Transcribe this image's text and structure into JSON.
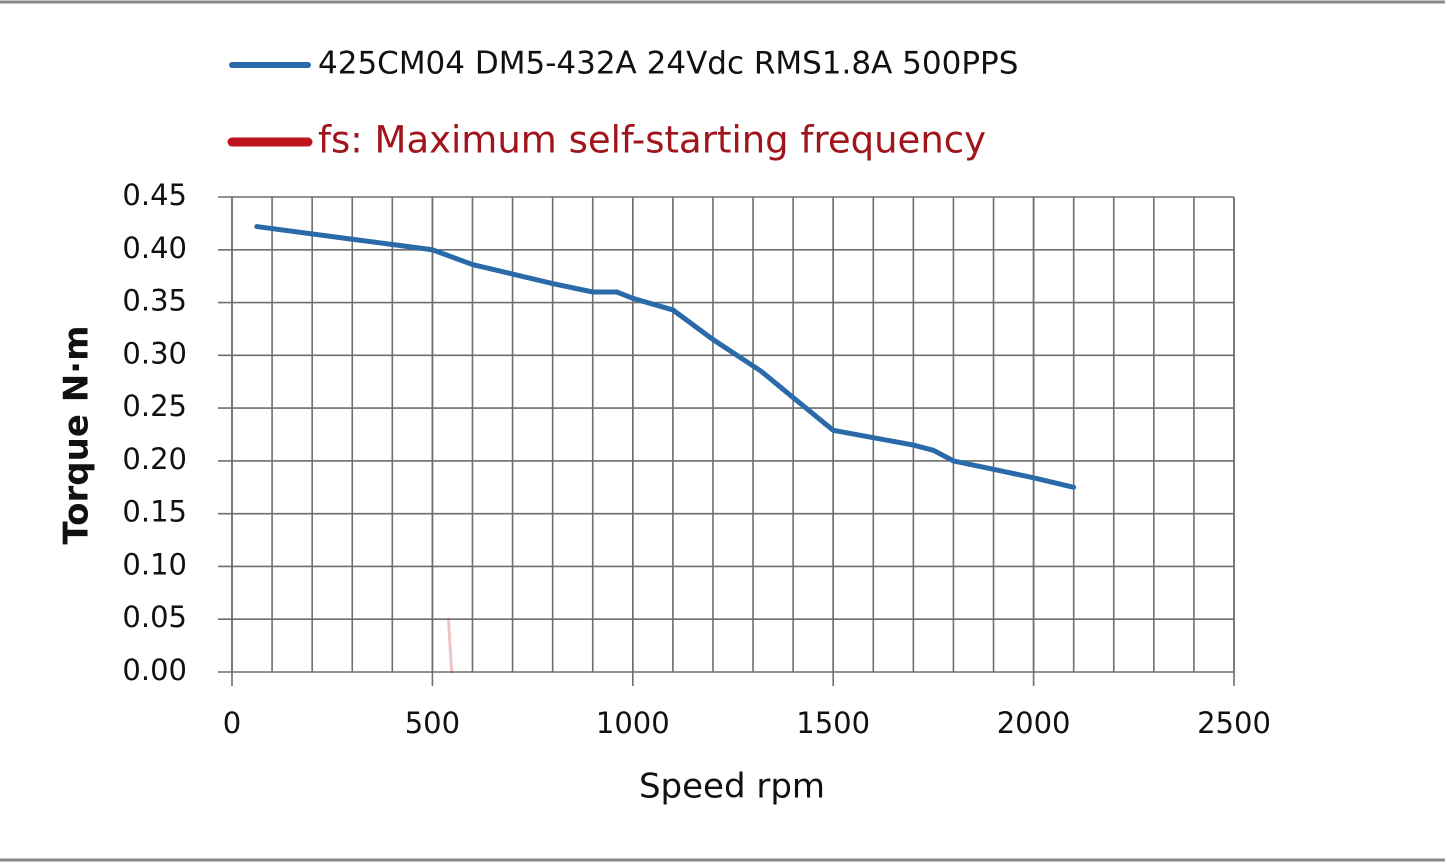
{
  "chart_data": {
    "type": "line",
    "series": [
      {
        "name": "425CM04 DM5-432A 24Vdc RMS1.8A 500PPS",
        "color": "#2a6aa8",
        "x": [
          62,
          300,
          400,
          500,
          600,
          700,
          800,
          900,
          960,
          1000,
          1100,
          1200,
          1320,
          1400,
          1500,
          1600,
          1700,
          1750,
          1800,
          1900,
          2000,
          2100
        ],
        "values": [
          0.422,
          0.41,
          0.405,
          0.4,
          0.386,
          0.377,
          0.368,
          0.36,
          0.36,
          0.354,
          0.343,
          0.315,
          0.285,
          0.26,
          0.229,
          0.222,
          0.215,
          0.21,
          0.2,
          0.192,
          0.184,
          0.175
        ]
      },
      {
        "name": "fs: Maximum self-starting frequency",
        "color": "#c0141c",
        "x": [
          540,
          548
        ],
        "values": [
          0.05,
          0.0
        ]
      }
    ],
    "xlabel": "Speed rpm",
    "ylabel": "Torque N·m",
    "xlim": [
      0,
      2500
    ],
    "xticks": [
      0,
      500,
      1000,
      1500,
      2000,
      2500
    ],
    "x_minor_step": 100,
    "ylim": [
      0,
      0.45
    ],
    "yticks": [
      {
        "value": 0,
        "label": "0.00"
      },
      0.05,
      {
        "value": 0.1,
        "label": "0.10"
      },
      0.15,
      {
        "value": 0.2,
        "label": "0.20"
      },
      0.25,
      {
        "value": 0.3,
        "label": "0.30"
      },
      0.35,
      {
        "value": 0.4,
        "label": "0.40"
      },
      0.45
    ],
    "grid": true
  }
}
